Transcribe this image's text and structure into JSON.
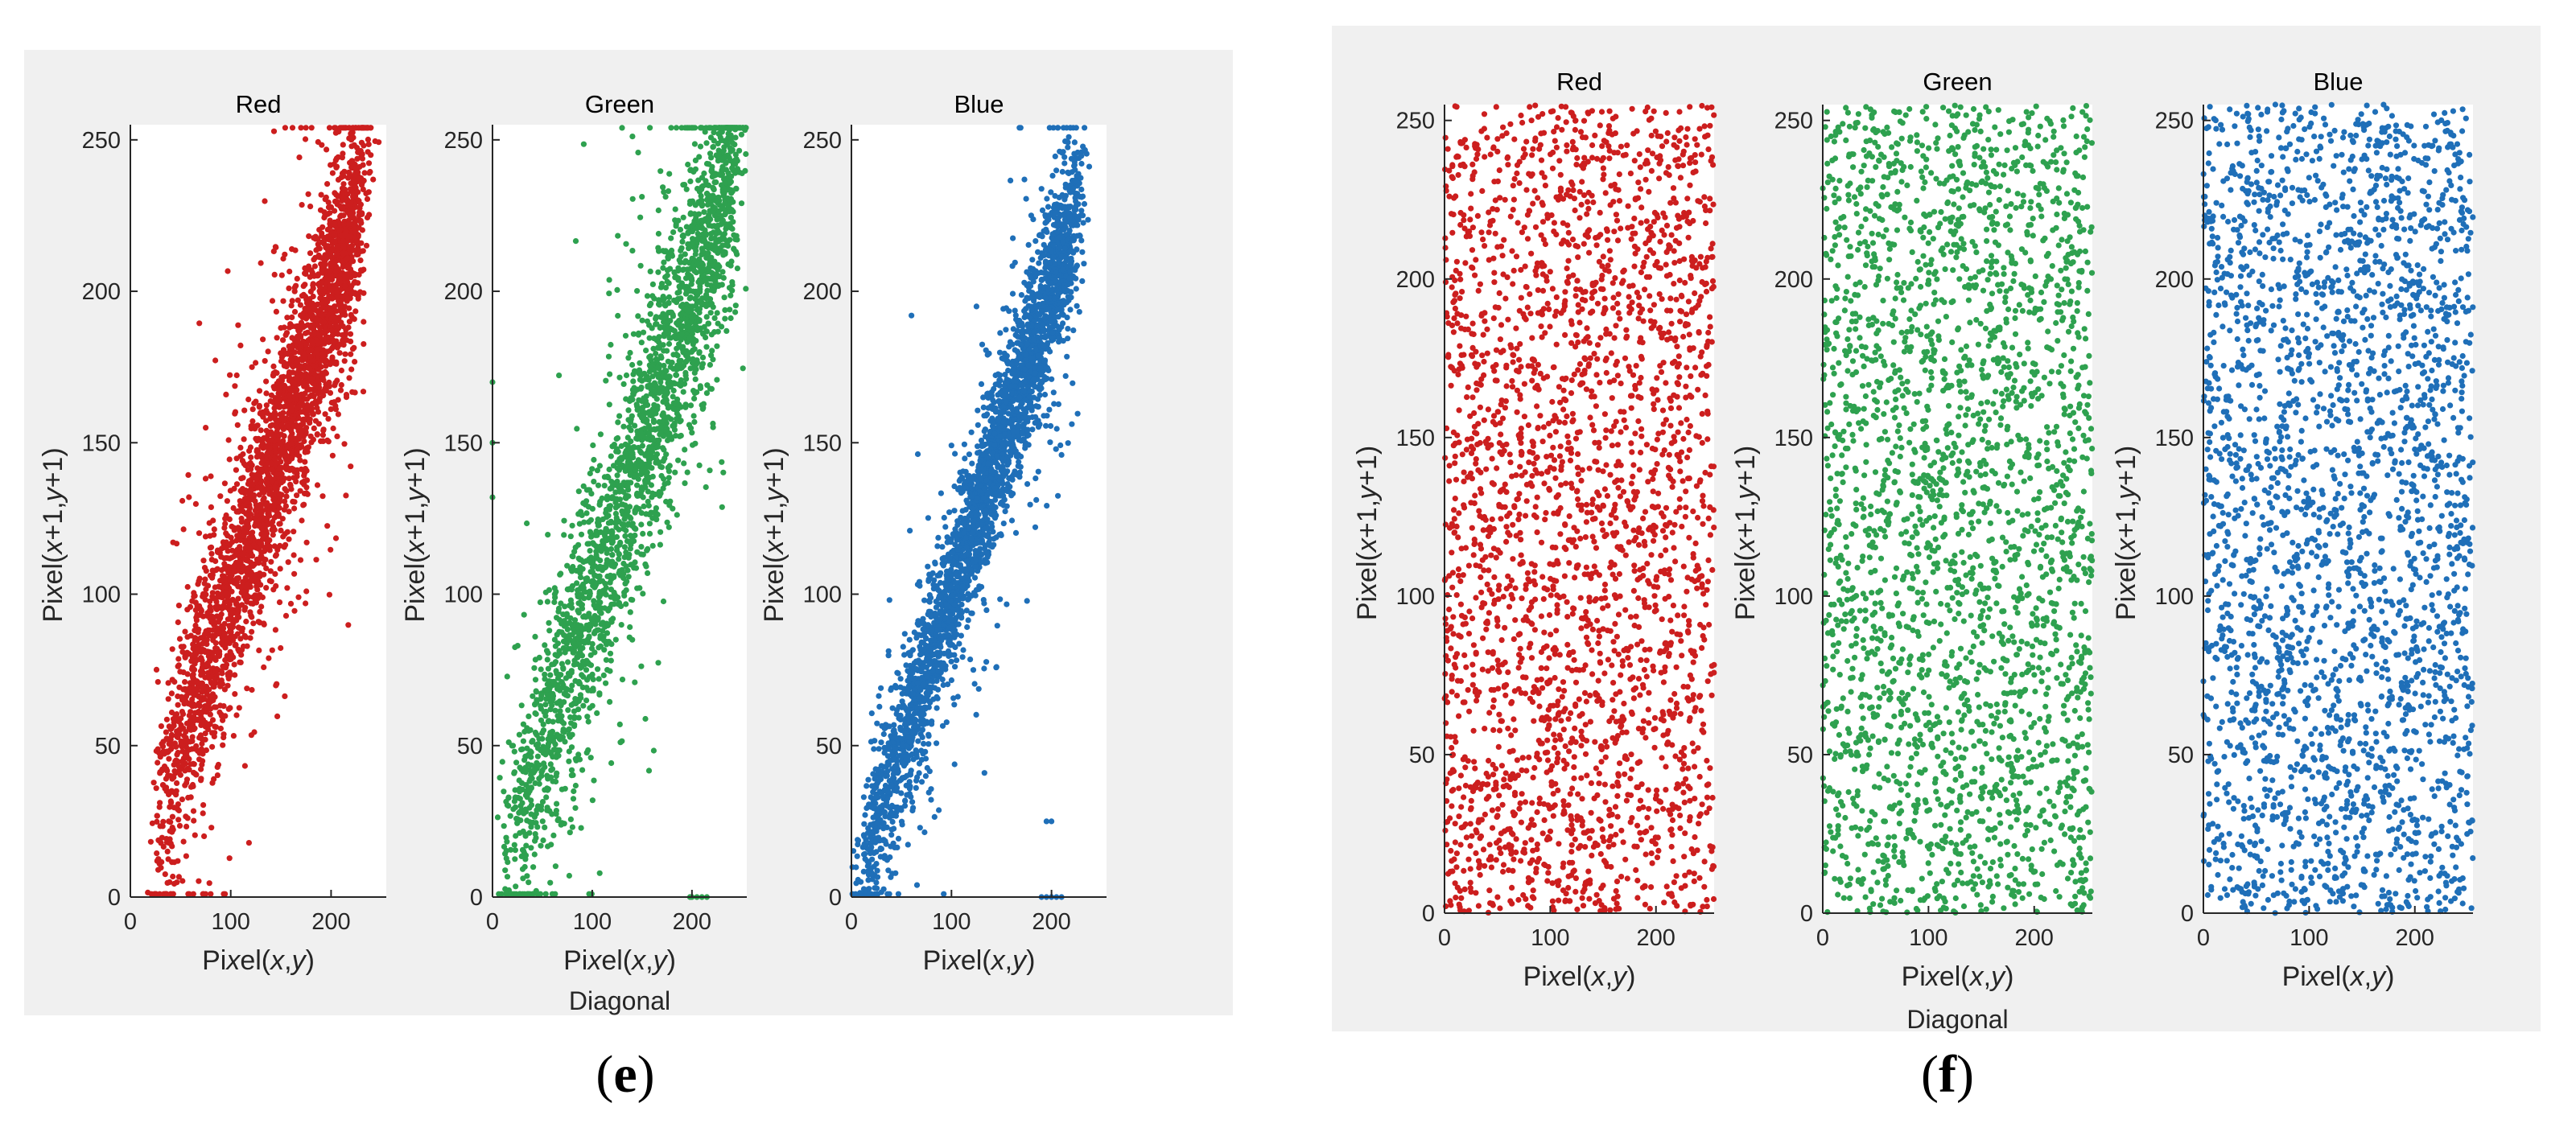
{
  "figures": [
    {
      "label_open": "(",
      "label_letter": "e",
      "label_close": ")",
      "group_label": "Diagonal"
    },
    {
      "label_open": "(",
      "label_letter": "f",
      "label_close": ")",
      "group_label": "Diagonal"
    }
  ],
  "chart_data": [
    {
      "type": "scatter",
      "figure": "e",
      "title": "Red",
      "xlabel": "Pixel(x,y)",
      "ylabel": "Pixel(x+1,y+1)",
      "xlim": [
        0,
        255
      ],
      "ylim": [
        0,
        255
      ],
      "xticks": [
        0,
        100,
        200
      ],
      "yticks": [
        0,
        50,
        100,
        150,
        200,
        250
      ],
      "color": "#cc1e1e",
      "distribution": "correlated",
      "point_count": 3000,
      "x_range": [
        25,
        230
      ],
      "y_over_x_offset": 0,
      "spread": 18,
      "outliers": []
    },
    {
      "type": "scatter",
      "figure": "e",
      "title": "Green",
      "xlabel": "Pixel(x,y)",
      "ylabel": "Pixel(x+1,y+1)",
      "xlim": [
        0,
        255
      ],
      "ylim": [
        0,
        255
      ],
      "xticks": [
        0,
        100,
        200
      ],
      "yticks": [
        0,
        50,
        100,
        150,
        200,
        250
      ],
      "color": "#2ea14f",
      "distribution": "correlated",
      "point_count": 2500,
      "x_range": [
        10,
        245
      ],
      "y_over_x_offset": 0,
      "spread": 20,
      "outliers": [
        [
          0,
          170
        ],
        [
          0,
          150
        ],
        [
          0,
          132
        ],
        [
          200,
          0
        ],
        [
          205,
          0
        ],
        [
          210,
          0
        ],
        [
          215,
          0
        ],
        [
          198,
          0
        ]
      ]
    },
    {
      "type": "scatter",
      "figure": "e",
      "title": "Blue",
      "xlabel": "Pixel(x,y)",
      "ylabel": "Pixel(x+1,y+1)",
      "xlim": [
        0,
        255
      ],
      "ylim": [
        0,
        255
      ],
      "xticks": [
        0,
        100,
        200
      ],
      "yticks": [
        0,
        50,
        100,
        150,
        200,
        250
      ],
      "color": "#1f6fb8",
      "distribution": "correlated",
      "point_count": 3000,
      "x_range": [
        8,
        225
      ],
      "y_over_x_offset": 0,
      "spread": 13,
      "outliers": [
        [
          60,
          192
        ],
        [
          195,
          25
        ],
        [
          200,
          25
        ],
        [
          190,
          0
        ],
        [
          195,
          0
        ],
        [
          200,
          0
        ],
        [
          205,
          0
        ],
        [
          210,
          0
        ],
        [
          210,
          146
        ],
        [
          125,
          195
        ]
      ]
    },
    {
      "type": "scatter",
      "figure": "f",
      "title": "Red",
      "xlabel": "Pixel(x,y)",
      "ylabel": "Pixel(x+1,y+1)",
      "xlim": [
        0,
        255
      ],
      "ylim": [
        0,
        255
      ],
      "xticks": [
        0,
        100,
        200
      ],
      "yticks": [
        0,
        50,
        100,
        150,
        200,
        250
      ],
      "color": "#cc1e1e",
      "distribution": "uniform",
      "point_count": 2600,
      "x_range": [
        0,
        255
      ],
      "outliers": []
    },
    {
      "type": "scatter",
      "figure": "f",
      "title": "Green",
      "xlabel": "Pixel(x,y)",
      "ylabel": "Pixel(x+1,y+1)",
      "xlim": [
        0,
        255
      ],
      "ylim": [
        0,
        255
      ],
      "xticks": [
        0,
        100,
        200
      ],
      "yticks": [
        0,
        50,
        100,
        150,
        200,
        250
      ],
      "color": "#2ea14f",
      "distribution": "uniform",
      "point_count": 2600,
      "x_range": [
        0,
        255
      ],
      "outliers": []
    },
    {
      "type": "scatter",
      "figure": "f",
      "title": "Blue",
      "xlabel": "Pixel(x,y)",
      "ylabel": "Pixel(x+1,y+1)",
      "xlim": [
        0,
        255
      ],
      "ylim": [
        0,
        255
      ],
      "xticks": [
        0,
        100,
        200
      ],
      "yticks": [
        0,
        50,
        100,
        150,
        200,
        250
      ],
      "color": "#1f6fb8",
      "distribution": "uniform",
      "point_count": 2600,
      "x_range": [
        0,
        255
      ],
      "outliers": []
    }
  ]
}
